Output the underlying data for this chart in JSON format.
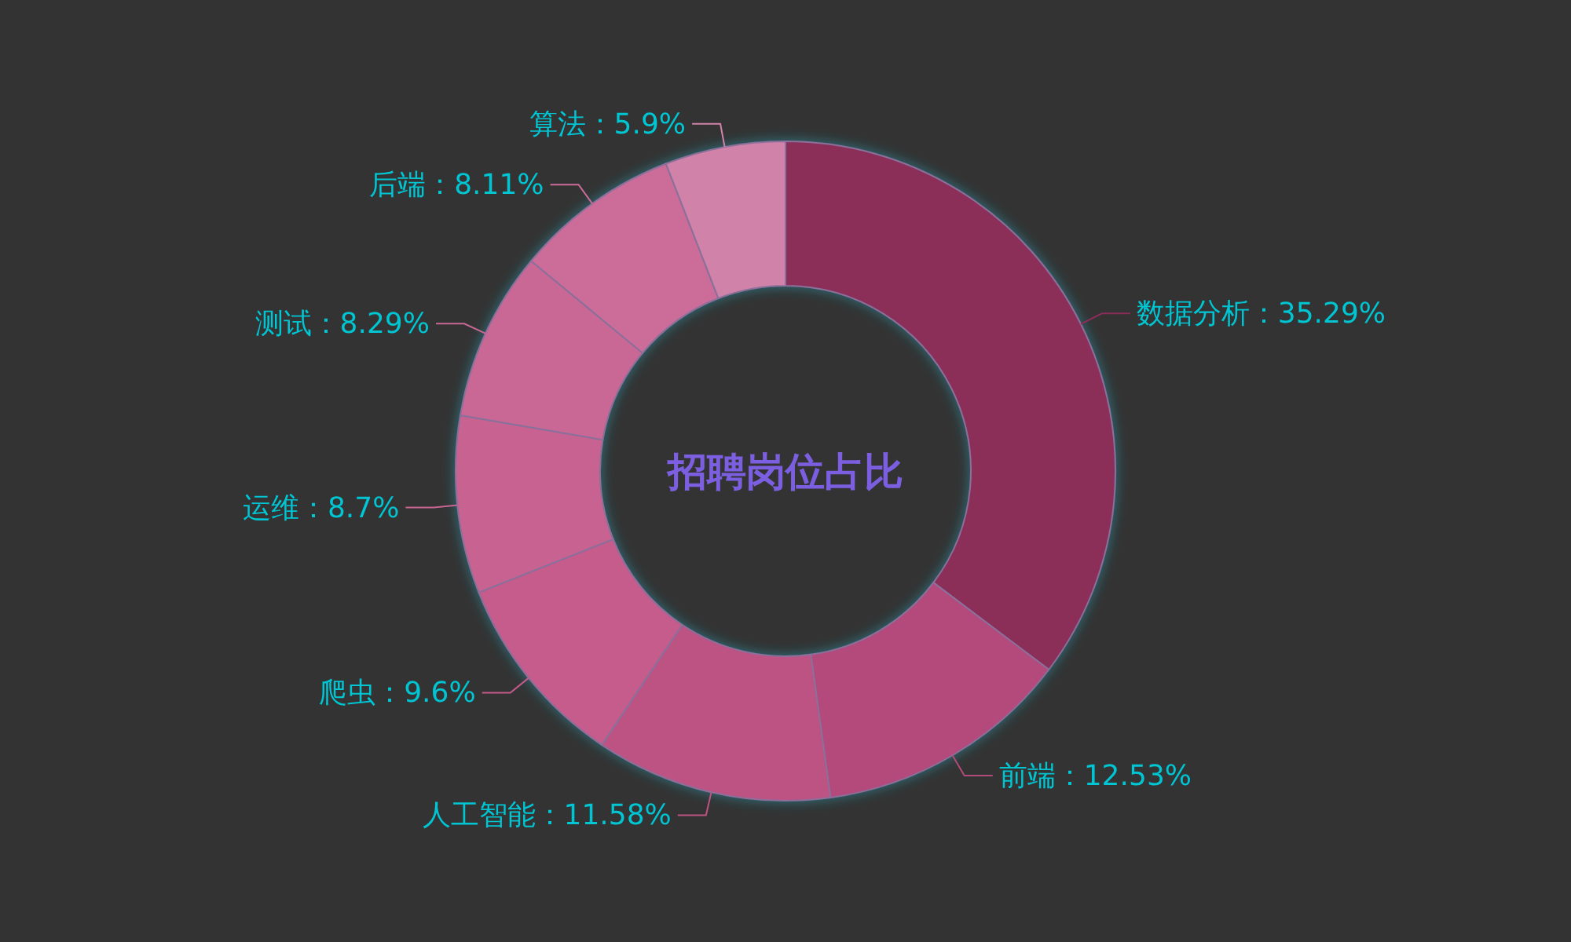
{
  "chart_data": {
    "type": "donut",
    "title": "招聘岗位占比",
    "categories": [
      "数据分析",
      "前端",
      "人工智能",
      "爬虫",
      "运维",
      "测试",
      "后端",
      "算法"
    ],
    "values": [
      35.29,
      12.53,
      11.58,
      9.6,
      8.7,
      8.29,
      8.11,
      5.9
    ],
    "value_labels": [
      "35.29%",
      "12.53%",
      "11.58%",
      "9.6%",
      "8.7%",
      "8.29%",
      "8.11%",
      "5.9%"
    ],
    "colors": [
      "#8b2d59",
      "#b44a7b",
      "#bd5283",
      "#c55b8c",
      "#c86491",
      "#ca6895",
      "#cb6d98",
      "#d082a8"
    ]
  }
}
